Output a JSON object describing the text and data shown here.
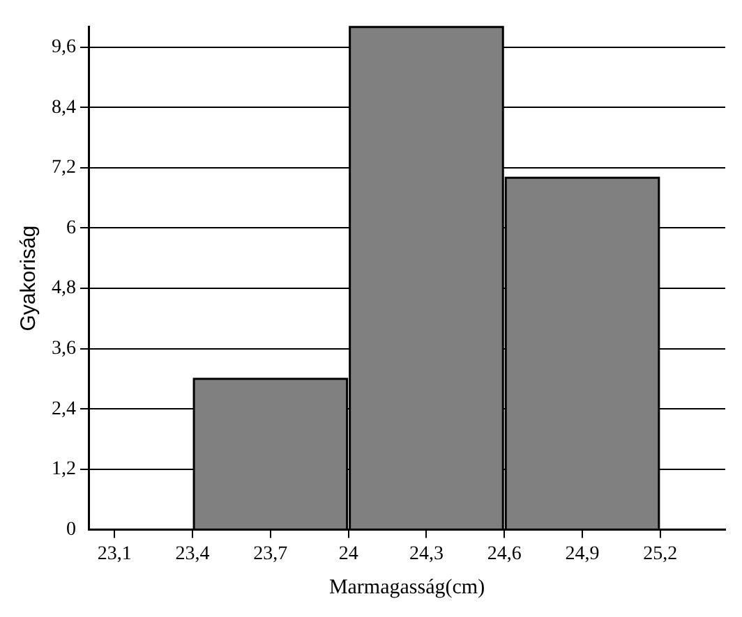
{
  "chart_data": {
    "type": "histogram",
    "xlabel": "Marmagasság(cm)",
    "ylabel": "Gyakoriság",
    "bins": [
      23.4,
      24.0,
      24.6,
      25.2
    ],
    "values": [
      3,
      10,
      7
    ],
    "color": "#808080",
    "xlim": [
      23.0,
      25.45
    ],
    "xticks": [
      {
        "value": 23.1,
        "label": "23,1"
      },
      {
        "value": 23.4,
        "label": "23,4"
      },
      {
        "value": 23.7,
        "label": "23,7"
      },
      {
        "value": 24,
        "label": "24"
      },
      {
        "value": 24.3,
        "label": "24,3"
      },
      {
        "value": 24.6,
        "label": "24,6"
      },
      {
        "value": 24.9,
        "label": "24,9"
      },
      {
        "value": 25.2,
        "label": "25,2"
      }
    ],
    "ylim": [
      0,
      10
    ],
    "yticks": [
      0,
      {
        "value": 1.2,
        "label": "1,2"
      },
      {
        "value": 2.4,
        "label": "2,4"
      },
      {
        "value": 3.6,
        "label": "3,6"
      },
      {
        "value": 4.8,
        "label": "4,8"
      },
      6,
      {
        "value": 7.2,
        "label": "7,2"
      },
      {
        "value": 8.4,
        "label": "8,4"
      },
      {
        "value": 9.6,
        "label": "9,6"
      }
    ],
    "grid": "y",
    "legend": false
  }
}
